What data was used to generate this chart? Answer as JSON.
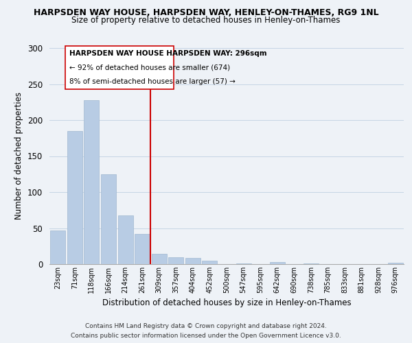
{
  "title": "HARPSDEN WAY HOUSE, HARPSDEN WAY, HENLEY-ON-THAMES, RG9 1NL",
  "subtitle": "Size of property relative to detached houses in Henley-on-Thames",
  "xlabel": "Distribution of detached houses by size in Henley-on-Thames",
  "ylabel": "Number of detached properties",
  "bar_labels": [
    "23sqm",
    "71sqm",
    "118sqm",
    "166sqm",
    "214sqm",
    "261sqm",
    "309sqm",
    "357sqm",
    "404sqm",
    "452sqm",
    "500sqm",
    "547sqm",
    "595sqm",
    "642sqm",
    "690sqm",
    "738sqm",
    "785sqm",
    "833sqm",
    "881sqm",
    "928sqm",
    "976sqm"
  ],
  "bar_values": [
    47,
    185,
    228,
    125,
    68,
    42,
    14,
    10,
    9,
    5,
    0,
    1,
    0,
    3,
    0,
    1,
    0,
    0,
    0,
    0,
    2
  ],
  "bar_color": "#b8cce4",
  "bar_edge_color": "#a0b8d0",
  "ylim": [
    0,
    300
  ],
  "yticks": [
    0,
    50,
    100,
    150,
    200,
    250,
    300
  ],
  "property_line_x": 5.5,
  "property_line_color": "#cc0000",
  "annotation_title": "HARPSDEN WAY HOUSE HARPSDEN WAY: 296sqm",
  "annotation_line1": "← 92% of detached houses are smaller (674)",
  "annotation_line2": "8% of semi-detached houses are larger (57) →",
  "footer1": "Contains HM Land Registry data © Crown copyright and database right 2024.",
  "footer2": "Contains public sector information licensed under the Open Government Licence v3.0.",
  "background_color": "#eef2f7",
  "grid_color": "#c5d5e5"
}
